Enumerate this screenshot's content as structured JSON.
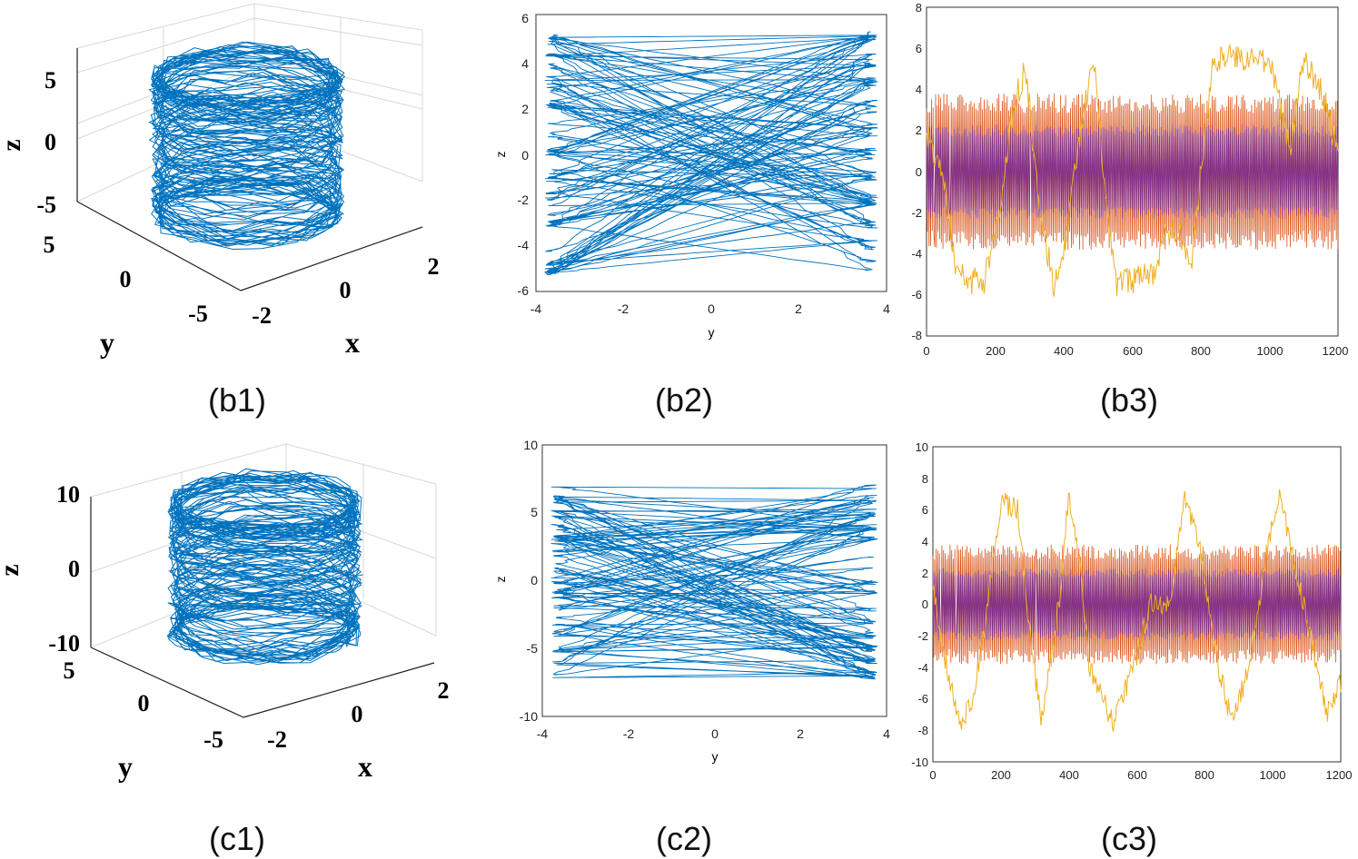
{
  "captions": [
    "(b1)",
    "(b2)",
    "(b3)",
    "(c1)",
    "(c2)",
    "(c3)"
  ],
  "chart_data": [
    {
      "id": "b1",
      "type": "line",
      "projection": "3d",
      "xlabel": "x",
      "ylabel": "y",
      "zlabel": "z",
      "x_ticks": [
        "-2",
        "0",
        "2"
      ],
      "y_ticks": [
        "5",
        "0",
        "-5"
      ],
      "z_ticks": [
        "5",
        "0",
        "-5"
      ],
      "xlim": [
        -2,
        2
      ],
      "ylim": [
        -5,
        5
      ],
      "zlim": [
        -6,
        6
      ],
      "series": [
        {
          "color": "#0072BD",
          "description": "3D chaotic trajectory, cylinder-shaped attractor"
        }
      ],
      "grid": true
    },
    {
      "id": "b2",
      "type": "line",
      "xlabel": "y",
      "ylabel": "z",
      "x_ticks": [
        "-4",
        "-2",
        "0",
        "2",
        "4"
      ],
      "y_ticks": [
        "-6",
        "-4",
        "-2",
        "0",
        "2",
        "4",
        "6"
      ],
      "xlim": [
        -4,
        4
      ],
      "ylim": [
        -6,
        6
      ],
      "band_levels": [
        -5,
        -4,
        -3,
        -2,
        -1,
        0,
        1,
        2,
        3,
        4,
        5
      ],
      "y_range": [
        -3.8,
        3.8
      ],
      "series": [
        {
          "color": "#0072BD"
        }
      ],
      "grid": false
    },
    {
      "id": "b3",
      "type": "line",
      "x_ticks": [
        "0",
        "200",
        "400",
        "600",
        "800",
        "1000",
        "1200"
      ],
      "y_ticks": [
        "-8",
        "-6",
        "-4",
        "-2",
        "0",
        "2",
        "4",
        "6",
        "8"
      ],
      "xlim": [
        0,
        1200
      ],
      "ylim": [
        -8,
        8
      ],
      "series": [
        {
          "color": "#D95319",
          "amplitude": 3.8
        },
        {
          "color": "#7E2F8E",
          "amplitude": 2.3
        },
        {
          "color": "#EDB120",
          "levels": [
            [
              0,
              2
            ],
            [
              45,
              0
            ],
            [
              90,
              -5
            ],
            [
              165,
              -5.5
            ],
            [
              210,
              -2
            ],
            [
              250,
              3
            ],
            [
              290,
              5
            ],
            [
              330,
              -2
            ],
            [
              370,
              -5.5
            ],
            [
              410,
              -3
            ],
            [
              450,
              2
            ],
            [
              490,
              5.5
            ],
            [
              520,
              -1
            ],
            [
              555,
              -5.5
            ],
            [
              670,
              -5
            ],
            [
              690,
              -3
            ],
            [
              740,
              -3
            ],
            [
              770,
              -5
            ],
            [
              800,
              0
            ],
            [
              835,
              5.5
            ],
            [
              1000,
              5.5
            ],
            [
              1060,
              1
            ],
            [
              1100,
              5.5
            ],
            [
              1150,
              4
            ],
            [
              1200,
              1
            ]
          ]
        }
      ],
      "grid": false
    },
    {
      "id": "c1",
      "type": "line",
      "projection": "3d",
      "xlabel": "x",
      "ylabel": "y",
      "zlabel": "z",
      "x_ticks": [
        "-2",
        "0",
        "2"
      ],
      "y_ticks": [
        "5",
        "0",
        "-5"
      ],
      "z_ticks": [
        "10",
        "0",
        "-10"
      ],
      "xlim": [
        -2,
        2
      ],
      "ylim": [
        -5,
        5
      ],
      "zlim": [
        -10,
        10
      ],
      "series": [
        {
          "color": "#0072BD",
          "description": "3D chaotic trajectory, cylinder-shaped attractor"
        }
      ],
      "grid": true
    },
    {
      "id": "c2",
      "type": "line",
      "xlabel": "y",
      "ylabel": "z",
      "x_ticks": [
        "-4",
        "-2",
        "0",
        "2",
        "4"
      ],
      "y_ticks": [
        "-10",
        "-5",
        "0",
        "5",
        "10"
      ],
      "xlim": [
        -4,
        4
      ],
      "ylim": [
        -10,
        10
      ],
      "band_levels": [
        -7,
        -6,
        -5,
        -4,
        -3,
        -2,
        -1,
        0,
        1,
        2,
        3,
        4,
        5,
        6,
        7
      ],
      "y_range": [
        -3.8,
        3.8
      ],
      "series": [
        {
          "color": "#0072BD"
        }
      ],
      "grid": false
    },
    {
      "id": "c3",
      "type": "line",
      "x_ticks": [
        "0",
        "200",
        "400",
        "600",
        "800",
        "1000",
        "1200"
      ],
      "y_ticks": [
        "-10",
        "-8",
        "-6",
        "-4",
        "-2",
        "0",
        "2",
        "4",
        "6",
        "8",
        "10"
      ],
      "xlim": [
        0,
        1200
      ],
      "ylim": [
        -10,
        10
      ],
      "series": [
        {
          "color": "#D95319",
          "amplitude": 3.8
        },
        {
          "color": "#7E2F8E",
          "amplitude": 2.3
        },
        {
          "color": "#EDB120",
          "levels": [
            [
              0,
              1
            ],
            [
              40,
              -4
            ],
            [
              80,
              -7.5
            ],
            [
              120,
              -6
            ],
            [
              160,
              0
            ],
            [
              200,
              6.5
            ],
            [
              250,
              6
            ],
            [
              290,
              -3
            ],
            [
              320,
              -7.5
            ],
            [
              370,
              0
            ],
            [
              400,
              7
            ],
            [
              430,
              3
            ],
            [
              460,
              -4
            ],
            [
              530,
              -7.5
            ],
            [
              590,
              -4
            ],
            [
              640,
              0
            ],
            [
              700,
              0
            ],
            [
              740,
              7
            ],
            [
              790,
              3
            ],
            [
              840,
              -4
            ],
            [
              880,
              -7.5
            ],
            [
              930,
              -4
            ],
            [
              980,
              3
            ],
            [
              1020,
              7
            ],
            [
              1060,
              3
            ],
            [
              1110,
              -2
            ],
            [
              1160,
              -7
            ],
            [
              1200,
              -5
            ]
          ]
        }
      ],
      "grid": false
    }
  ]
}
